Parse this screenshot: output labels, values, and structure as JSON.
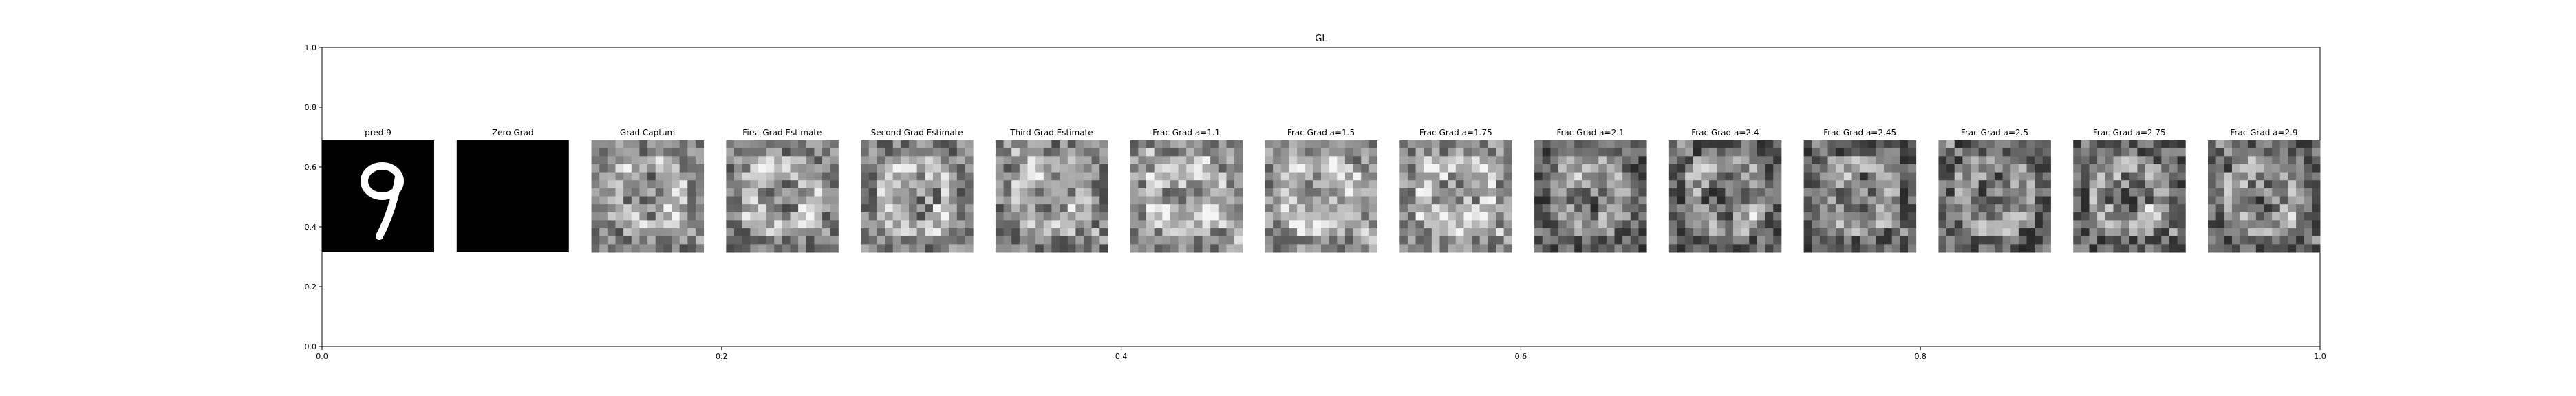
{
  "chart_data": {
    "type": "image-grid",
    "title": "GL",
    "xlim": [
      0.0,
      1.0
    ],
    "ylim": [
      0.0,
      1.0
    ],
    "xticks": [
      "0.0",
      "0.2",
      "0.4",
      "0.6",
      "0.8",
      "1.0"
    ],
    "yticks": [
      "0.0",
      "0.2",
      "0.4",
      "0.6",
      "0.8",
      "1.0"
    ],
    "grid": false,
    "panels": [
      {
        "title": "pred 9",
        "kind": "digit"
      },
      {
        "title": "Zero Grad",
        "kind": "black"
      },
      {
        "title": "Grad Captum",
        "kind": "noise"
      },
      {
        "title": "First Grad Estimate",
        "kind": "noise"
      },
      {
        "title": "Second Grad Estimate",
        "kind": "noise"
      },
      {
        "title": "Third Grad Estimate",
        "kind": "noise"
      },
      {
        "title": "Frac Grad a=1.1",
        "kind": "noise"
      },
      {
        "title": "Frac Grad a=1.5",
        "kind": "noise"
      },
      {
        "title": "Frac Grad a=1.75",
        "kind": "noise"
      },
      {
        "title": "Frac Grad a=2.1",
        "kind": "noise"
      },
      {
        "title": "Frac Grad a=2.4",
        "kind": "noise"
      },
      {
        "title": "Frac Grad a=2.45",
        "kind": "noise"
      },
      {
        "title": "Frac Grad a=2.5",
        "kind": "noise"
      },
      {
        "title": "Frac Grad a=2.75",
        "kind": "noise"
      },
      {
        "title": "Frac Grad a=2.9",
        "kind": "noise"
      }
    ]
  }
}
